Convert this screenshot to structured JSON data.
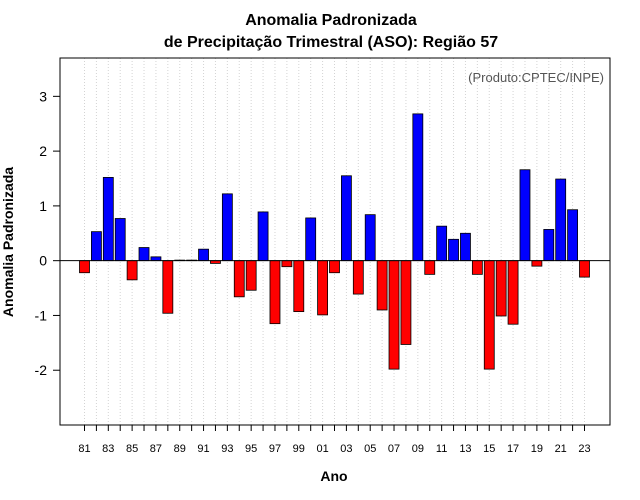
{
  "chart_data": {
    "type": "bar",
    "title_line1": "Anomalia Padronizada",
    "title_line2": "de Precipitação Trimestral (ASO): Região 57",
    "credit": "(Produto:CPTEC/INPE)",
    "xlabel": "Ano",
    "ylabel": "Anomalia Padronizada",
    "ylim": [
      -3,
      3.7
    ],
    "yticks": [
      -2,
      -1,
      0,
      1,
      2,
      3
    ],
    "yticks_labels": [
      "-2",
      "-1",
      "0",
      "1",
      "2",
      "3"
    ],
    "categories": [
      "81",
      "82",
      "83",
      "84",
      "85",
      "86",
      "87",
      "88",
      "89",
      "90",
      "91",
      "92",
      "93",
      "94",
      "95",
      "96",
      "97",
      "98",
      "99",
      "00",
      "01",
      "02",
      "03",
      "04",
      "05",
      "06",
      "07",
      "08",
      "09",
      "10",
      "11",
      "12",
      "13",
      "14",
      "15",
      "16",
      "17",
      "18",
      "19",
      "20",
      "21",
      "22",
      "23"
    ],
    "xtick_labels": [
      "81",
      "83",
      "85",
      "87",
      "89",
      "91",
      "93",
      "95",
      "97",
      "99",
      "01",
      "03",
      "05",
      "07",
      "09",
      "11",
      "13",
      "15",
      "17",
      "19",
      "21",
      "23"
    ],
    "values": [
      -0.22,
      0.53,
      1.52,
      0.77,
      -0.35,
      0.24,
      0.07,
      -0.96,
      0.01,
      0.01,
      0.21,
      -0.05,
      1.22,
      -0.66,
      -0.54,
      0.89,
      -1.15,
      -0.11,
      -0.93,
      0.78,
      -0.99,
      -0.22,
      1.55,
      -0.61,
      0.84,
      -0.9,
      -1.98,
      -1.53,
      2.68,
      -0.25,
      0.63,
      0.39,
      0.5,
      -0.25,
      -1.98,
      -1.01,
      -1.16,
      1.66,
      -0.1,
      0.57,
      1.49,
      0.93,
      -0.3
    ],
    "colors": {
      "positive": "#0000ff",
      "negative": "#ff0000",
      "outline": "#000000",
      "grid": "#d3d3d3",
      "zero_line": "#000000"
    },
    "grid": true
  }
}
